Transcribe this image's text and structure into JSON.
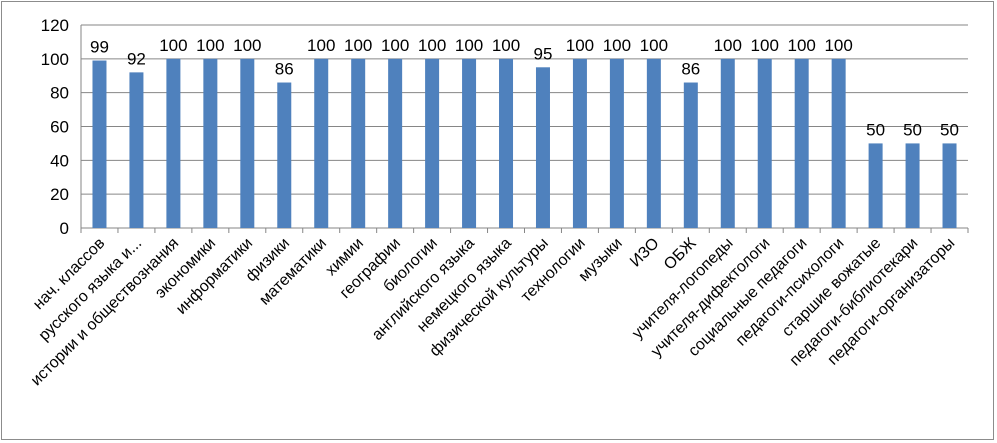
{
  "chart_data": {
    "type": "bar",
    "categories": [
      "нач. классов",
      "русского языка и...",
      "истории и обществознания",
      "экономики",
      "информатики",
      "физики",
      "математики",
      "химии",
      "географии",
      "биологии",
      "английского языка",
      "немецкого языка",
      "физической культуры",
      "технологии",
      "музыки",
      "ИЗО",
      "ОБЖ",
      "учителя-логопеды",
      "учителя-дифектологи",
      "социальные педагоги",
      "педагоги-психологи",
      "старшие вожатые",
      "педагоги-библиотекари",
      "педагоги-организаторы"
    ],
    "values": [
      99,
      92,
      100,
      100,
      100,
      86,
      100,
      100,
      100,
      100,
      100,
      100,
      95,
      100,
      100,
      100,
      86,
      100,
      100,
      100,
      100,
      50,
      50,
      50
    ],
    "data_labels": [
      "99",
      "92",
      "100",
      "100",
      "100",
      "86",
      "100",
      "100",
      "100",
      "100",
      "100",
      "100",
      "95",
      "100",
      "100",
      "100",
      "86",
      "100",
      "100",
      "100",
      "100",
      "50",
      "50",
      "50"
    ],
    "y_ticks": [
      "0",
      "20",
      "40",
      "60",
      "80",
      "100",
      "120"
    ],
    "ylim": [
      0,
      120
    ],
    "title": "",
    "xlabel": "",
    "ylabel": "",
    "grid": true,
    "legend": "none",
    "bar_color": "#4F81BD",
    "grid_color": "#868686"
  }
}
